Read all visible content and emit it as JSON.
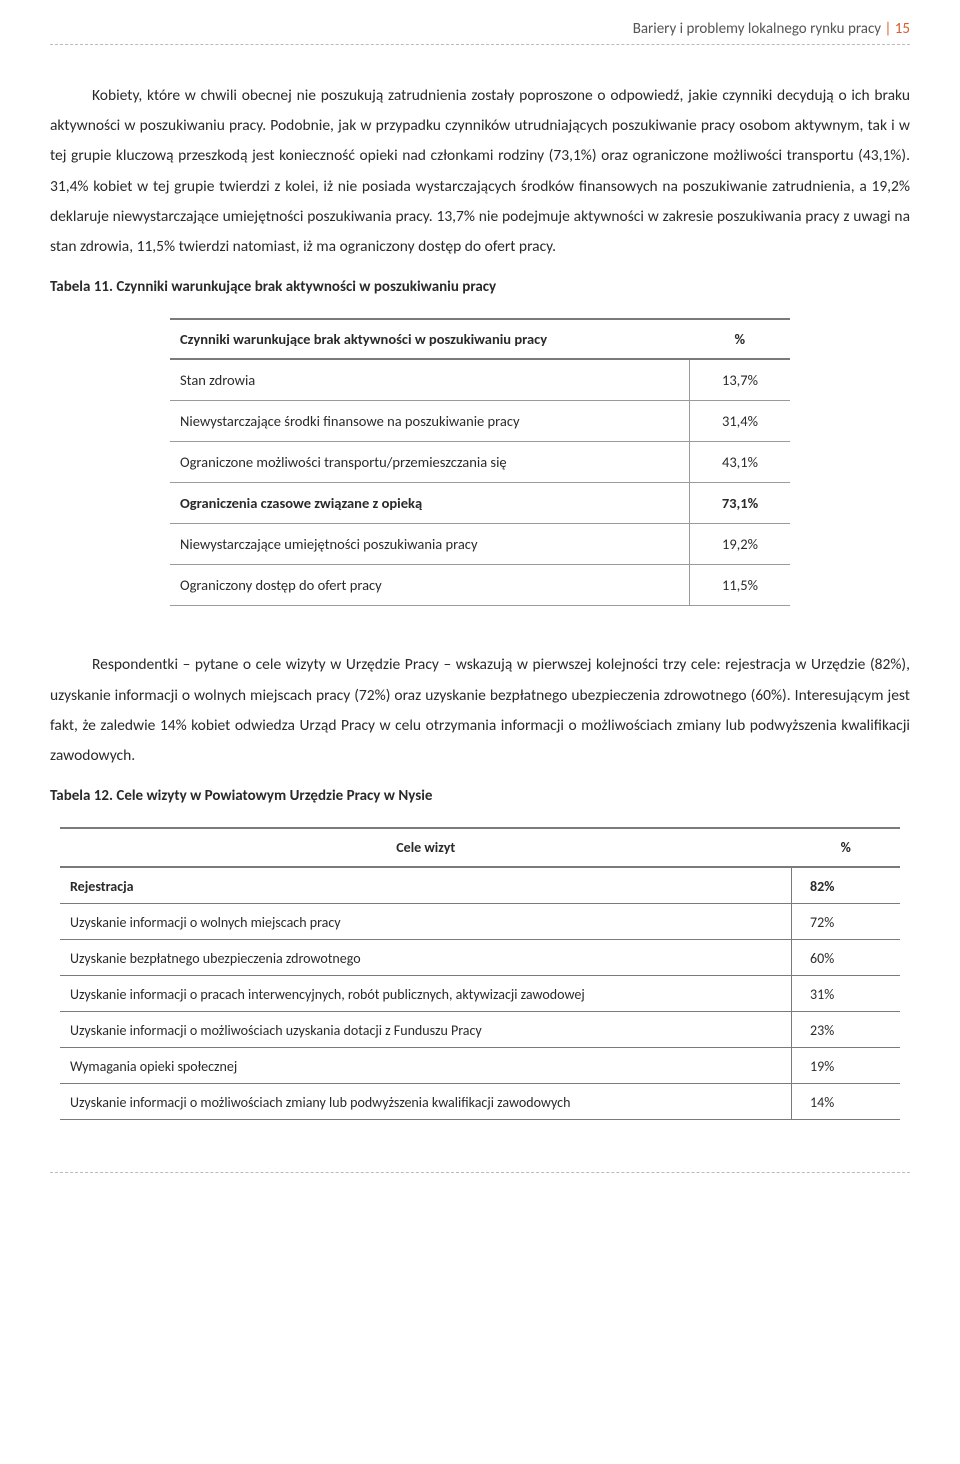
{
  "header": {
    "title": "Bariery i problemy lokalnego rynku pracy",
    "separator": " | ",
    "page_number": "15"
  },
  "paragraphs": {
    "p1": "Kobiety, które w chwili obecnej nie poszukują zatrudnienia zostały poproszone o odpowiedź, jakie czynniki decydują o ich braku aktywności w poszukiwaniu pracy. Podobnie, jak w przypadku czynników utrudniających poszukiwanie pracy osobom aktywnym, tak i w tej grupie kluczową przeszkodą jest konieczność opieki nad członkami rodziny (73,1%) oraz ograniczone możliwości transportu (43,1%). 31,4% kobiet w tej grupie twierdzi z kolei, iż nie posiada wystarczających środków finansowych na poszukiwanie zatrudnienia, a 19,2% deklaruje niewystarczające umiejętności poszukiwania pracy. 13,7% nie podejmuje aktywności w zakresie poszukiwania pracy z uwagi na stan zdrowia, 11,5% twierdzi natomiast, iż ma ograniczony dostęp do ofert pracy.",
    "p2": "Respondentki – pytane o cele wizyty w Urzędzie Pracy – wskazują w pierwszej kolejności trzy cele: rejestracja w Urzędzie (82%), uzyskanie informacji o wolnych miejscach pracy (72%) oraz uzyskanie bezpłatnego ubezpieczenia zdrowotnego (60%). Interesującym jest fakt, że zaledwie 14% kobiet odwiedza Urząd Pracy w celu otrzymania informacji o możliwościach zmiany lub podwyższenia kwalifikacji zawodowych."
  },
  "table11": {
    "caption": "Tabela 11. Czynniki warunkujące brak aktywności w poszukiwaniu pracy",
    "head_label": "Czynniki warunkujące brak aktywności w poszukiwaniu pracy",
    "head_pct": "%",
    "rows": [
      {
        "label": "Stan zdrowia",
        "pct": "13,7%",
        "bold": false
      },
      {
        "label": "Niewystarczające środki finansowe na poszukiwanie pracy",
        "pct": "31,4%",
        "bold": false
      },
      {
        "label": "Ograniczone możliwości transportu/przemieszczania się",
        "pct": "43,1%",
        "bold": false
      },
      {
        "label": "Ograniczenia czasowe związane z opieką",
        "pct": "73,1%",
        "bold": true
      },
      {
        "label": "Niewystarczające umiejętności poszukiwania pracy",
        "pct": "19,2%",
        "bold": false
      },
      {
        "label": "Ograniczony dostęp do ofert pracy",
        "pct": "11,5%",
        "bold": false
      }
    ]
  },
  "table12": {
    "caption": "Tabela 12. Cele wizyty w Powiatowym Urzędzie Pracy w Nysie",
    "head_label": "Cele wizyt",
    "head_pct": "%",
    "rows": [
      {
        "label": "Rejestracja",
        "pct": "82%",
        "bold": true
      },
      {
        "label": "Uzyskanie informacji o wolnych miejscach pracy",
        "pct": "72%",
        "bold": false
      },
      {
        "label": "Uzyskanie bezpłatnego ubezpieczenia zdrowotnego",
        "pct": "60%",
        "bold": false
      },
      {
        "label": "Uzyskanie informacji o pracach interwencyjnych, robót publicznych, aktywizacji zawodowej",
        "pct": "31%",
        "bold": false
      },
      {
        "label": "Uzyskanie informacji o możliwościach uzyskania dotacji z Funduszu Pracy",
        "pct": "23%",
        "bold": false
      },
      {
        "label": "Wymagania opieki społecznej",
        "pct": "19%",
        "bold": false
      },
      {
        "label": "Uzyskanie informacji o możliwościach zmiany lub podwyższenia kwalifikacji zawodowych",
        "pct": "14%",
        "bold": false
      }
    ]
  }
}
